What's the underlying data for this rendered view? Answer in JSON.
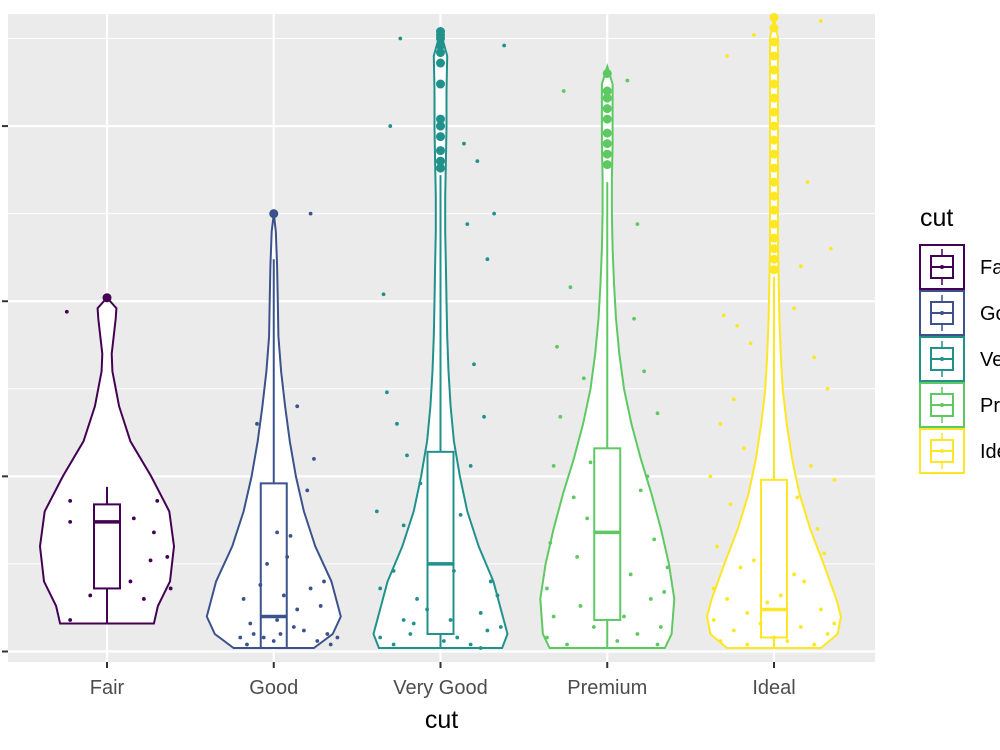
{
  "chart_data": {
    "type": "violin",
    "xlabel": "cut",
    "ylabel": "",
    "categories": [
      "Fair",
      "Good",
      "Very Good",
      "Premium",
      "Ideal"
    ],
    "colors": [
      "#440154",
      "#3b528b",
      "#21918c",
      "#5ec962",
      "#fde725"
    ],
    "grid": true,
    "panel_background": "#ebebeb",
    "ylim": [
      -0.3,
      18.2
    ],
    "y_gridlines_major": [
      0,
      5,
      10,
      15
    ],
    "y_gridlines_minor": [
      2.5,
      7.5,
      12.5,
      17.5
    ],
    "y_tick_labels_visible": false,
    "legend": {
      "title": "cut",
      "position": "right",
      "entries": [
        "Fair",
        "Good",
        "Very Good",
        "Premium",
        "Ideal"
      ]
    },
    "series": [
      {
        "category": "Fair",
        "violin_range": [
          0.8,
          10.1
        ],
        "violin_profile": [
          [
            0.8,
            0.7
          ],
          [
            1.3,
            0.76
          ],
          [
            2.0,
            0.94
          ],
          [
            3.0,
            1.0
          ],
          [
            4.0,
            0.93
          ],
          [
            5.0,
            0.66
          ],
          [
            6.0,
            0.35
          ],
          [
            7.0,
            0.18
          ],
          [
            8.0,
            0.08
          ],
          [
            8.5,
            0.07
          ],
          [
            9.0,
            0.1
          ],
          [
            9.5,
            0.13
          ],
          [
            9.8,
            0.14
          ],
          [
            10.1,
            0.0
          ]
        ],
        "box": {
          "q1": 1.8,
          "median": 3.7,
          "q3": 4.2,
          "whisker_low": 0.8,
          "whisker_high": 4.7
        },
        "outliers": [
          10.1
        ],
        "points": [
          [
            -0.6,
            9.7
          ],
          [
            -0.55,
            3.7
          ],
          [
            -0.55,
            0.9
          ],
          [
            -0.55,
            4.3
          ],
          [
            -0.25,
            1.6
          ],
          [
            0.35,
            2.0
          ],
          [
            0.4,
            3.8
          ],
          [
            0.55,
            1.5
          ],
          [
            0.65,
            2.6
          ],
          [
            0.7,
            3.4
          ],
          [
            0.75,
            4.3
          ],
          [
            0.9,
            2.7
          ],
          [
            0.95,
            1.8
          ]
        ]
      },
      {
        "category": "Good",
        "violin_range": [
          0.1,
          12.5
        ],
        "violin_profile": [
          [
            0.1,
            0.6
          ],
          [
            0.5,
            0.88
          ],
          [
            1.0,
            1.0
          ],
          [
            2.0,
            0.86
          ],
          [
            3.0,
            0.62
          ],
          [
            4.0,
            0.45
          ],
          [
            5.0,
            0.33
          ],
          [
            6.0,
            0.24
          ],
          [
            7.0,
            0.17
          ],
          [
            8.0,
            0.11
          ],
          [
            9.0,
            0.07
          ],
          [
            10.0,
            0.06
          ],
          [
            11.0,
            0.05
          ],
          [
            12.0,
            0.03
          ],
          [
            12.5,
            0.0
          ]
        ],
        "box": {
          "q1": 0.1,
          "median": 1.0,
          "q3": 4.8,
          "whisker_low": 0.1,
          "whisker_high": 11.2
        },
        "outliers": [
          12.5
        ],
        "points": [
          [
            -0.45,
            1.5
          ],
          [
            -0.35,
            0.8
          ],
          [
            -0.3,
            0.5
          ],
          [
            -0.25,
            6.5
          ],
          [
            -0.2,
            1.9
          ],
          [
            -0.15,
            0.4
          ],
          [
            -0.1,
            2.5
          ],
          [
            0.05,
            0.9
          ],
          [
            0.05,
            3.4
          ],
          [
            0.1,
            0.5
          ],
          [
            0.15,
            1.6
          ],
          [
            0.2,
            2.7
          ],
          [
            0.25,
            3.3
          ],
          [
            0.35,
            1.2
          ],
          [
            0.35,
            7.0
          ],
          [
            0.45,
            0.6
          ],
          [
            0.5,
            4.6
          ],
          [
            0.55,
            1.8
          ],
          [
            0.55,
            12.5
          ],
          [
            0.6,
            5.5
          ],
          [
            0.65,
            0.3
          ],
          [
            0.7,
            1.3
          ],
          [
            0.8,
            0.5
          ],
          [
            0.85,
            0.2
          ],
          [
            0.95,
            0.4
          ],
          [
            -0.5,
            0.4
          ],
          [
            -0.4,
            0.2
          ],
          [
            0.0,
            0.3
          ],
          [
            0.3,
            0.7
          ],
          [
            0.75,
            2.0
          ]
        ]
      },
      {
        "category": "Very Good",
        "violin_range": [
          0.1,
          17.7
        ],
        "violin_profile": [
          [
            0.1,
            0.92
          ],
          [
            0.5,
            1.0
          ],
          [
            1.0,
            0.93
          ],
          [
            2.0,
            0.79
          ],
          [
            3.0,
            0.57
          ],
          [
            4.0,
            0.4
          ],
          [
            5.0,
            0.29
          ],
          [
            6.0,
            0.2
          ],
          [
            7.0,
            0.15
          ],
          [
            8.0,
            0.12
          ],
          [
            9.0,
            0.1
          ],
          [
            10.0,
            0.09
          ],
          [
            11.0,
            0.08
          ],
          [
            12.0,
            0.07
          ],
          [
            13.0,
            0.07
          ],
          [
            14.0,
            0.08
          ],
          [
            15.0,
            0.09
          ],
          [
            16.0,
            0.09
          ],
          [
            17.0,
            0.1
          ],
          [
            17.7,
            0.0
          ]
        ],
        "box": {
          "q1": 0.5,
          "median": 2.5,
          "q3": 5.7,
          "whisker_low": 0.1,
          "whisker_high": 13.6
        },
        "outliers": [
          17.7,
          17.6,
          17.5,
          17.3,
          17.1,
          16.8,
          16.2,
          15.2,
          15.0,
          14.7,
          14.3,
          14.0,
          13.8
        ],
        "points": [
          [
            -0.95,
            4.0
          ],
          [
            -0.9,
            1.8
          ],
          [
            -0.85,
            10.2
          ],
          [
            -0.8,
            7.4
          ],
          [
            -0.75,
            15.0
          ],
          [
            -0.7,
            2.3
          ],
          [
            -0.65,
            6.5
          ],
          [
            -0.6,
            17.5
          ],
          [
            -0.55,
            3.6
          ],
          [
            -0.5,
            5.6
          ],
          [
            -0.4,
            0.8
          ],
          [
            -0.35,
            1.5
          ],
          [
            -0.3,
            4.8
          ],
          [
            0.3,
            3.9
          ],
          [
            0.35,
            14.5
          ],
          [
            0.4,
            12.2
          ],
          [
            0.45,
            5.3
          ],
          [
            0.5,
            8.2
          ],
          [
            0.55,
            14.0
          ],
          [
            0.6,
            1.1
          ],
          [
            0.65,
            6.7
          ],
          [
            0.7,
            11.2
          ],
          [
            0.75,
            2.0
          ],
          [
            0.8,
            12.5
          ],
          [
            0.9,
            0.7
          ],
          [
            0.95,
            17.3
          ],
          [
            -0.9,
            0.4
          ],
          [
            -0.7,
            0.2
          ],
          [
            -0.45,
            0.5
          ],
          [
            0.05,
            0.3
          ],
          [
            0.15,
            0.9
          ],
          [
            0.25,
            0.4
          ],
          [
            0.45,
            0.2
          ],
          [
            0.7,
            0.6
          ],
          [
            0.85,
            1.6
          ],
          [
            -0.2,
            1.2
          ],
          [
            0.2,
            2.3
          ],
          [
            -0.55,
            0.9
          ],
          [
            0.6,
            0.1
          ]
        ]
      },
      {
        "category": "Premium",
        "violin_range": [
          0.1,
          16.7
        ],
        "violin_profile": [
          [
            0.1,
            0.86
          ],
          [
            0.5,
            0.96
          ],
          [
            1.5,
            1.0
          ],
          [
            2.5,
            0.92
          ],
          [
            3.5,
            0.8
          ],
          [
            4.5,
            0.66
          ],
          [
            5.5,
            0.5
          ],
          [
            6.5,
            0.36
          ],
          [
            7.5,
            0.25
          ],
          [
            8.5,
            0.18
          ],
          [
            9.5,
            0.13
          ],
          [
            10.5,
            0.1
          ],
          [
            11.5,
            0.08
          ],
          [
            12.5,
            0.07
          ],
          [
            13.5,
            0.07
          ],
          [
            14.5,
            0.08
          ],
          [
            15.5,
            0.08
          ],
          [
            16.2,
            0.08
          ],
          [
            16.7,
            0.0
          ]
        ],
        "box": {
          "q1": 0.9,
          "median": 3.4,
          "q3": 5.8,
          "whisker_low": 0.1,
          "whisker_high": 13.4
        },
        "outliers": [
          16.5,
          16.0,
          15.8,
          15.5,
          15.2,
          14.8,
          14.5,
          14.2,
          13.9
        ],
        "points": [
          [
            -0.9,
            1.8
          ],
          [
            -0.85,
            3.1
          ],
          [
            -0.8,
            5.3
          ],
          [
            -0.75,
            8.7
          ],
          [
            -0.7,
            6.7
          ],
          [
            -0.65,
            16.0
          ],
          [
            -0.55,
            10.4
          ],
          [
            -0.5,
            4.4
          ],
          [
            -0.45,
            2.7
          ],
          [
            -0.4,
            1.3
          ],
          [
            -0.35,
            7.8
          ],
          [
            -0.3,
            3.8
          ],
          [
            0.3,
            16.3
          ],
          [
            0.35,
            2.2
          ],
          [
            0.4,
            9.5
          ],
          [
            0.45,
            12.2
          ],
          [
            0.5,
            4.6
          ],
          [
            0.55,
            8.0
          ],
          [
            0.6,
            5.0
          ],
          [
            0.65,
            1.5
          ],
          [
            0.7,
            3.2
          ],
          [
            0.75,
            6.8
          ],
          [
            0.8,
            0.7
          ],
          [
            0.9,
            2.4
          ],
          [
            -0.9,
            0.4
          ],
          [
            -0.6,
            0.2
          ],
          [
            -0.2,
            0.7
          ],
          [
            0.15,
            0.3
          ],
          [
            0.45,
            0.5
          ],
          [
            0.75,
            0.2
          ],
          [
            -0.8,
            1.0
          ],
          [
            0.25,
            1.0
          ],
          [
            0.85,
            1.7
          ],
          [
            -0.25,
            5.4
          ]
        ]
      },
      {
        "category": "Ideal",
        "violin_range": [
          0.1,
          18.1
        ],
        "violin_profile": [
          [
            0.1,
            0.7
          ],
          [
            0.5,
            0.95
          ],
          [
            1.0,
            1.0
          ],
          [
            1.5,
            0.93
          ],
          [
            2.5,
            0.74
          ],
          [
            3.5,
            0.54
          ],
          [
            4.5,
            0.38
          ],
          [
            5.5,
            0.27
          ],
          [
            6.5,
            0.19
          ],
          [
            7.5,
            0.13
          ],
          [
            8.5,
            0.1
          ],
          [
            9.5,
            0.08
          ],
          [
            10.5,
            0.07
          ],
          [
            11.5,
            0.06
          ],
          [
            12.5,
            0.06
          ],
          [
            13.5,
            0.06
          ],
          [
            14.5,
            0.06
          ],
          [
            15.5,
            0.06
          ],
          [
            16.5,
            0.06
          ],
          [
            17.5,
            0.06
          ],
          [
            18.1,
            0.0
          ]
        ],
        "box": {
          "q1": 0.4,
          "median": 1.2,
          "q3": 4.9,
          "whisker_low": 0.1,
          "whisker_high": 10.7
        },
        "outliers": [
          18.1,
          17.8,
          17.4,
          17.0,
          16.6,
          16.2,
          15.8,
          15.4,
          15.0,
          14.6,
          14.2,
          13.8,
          13.4,
          13.0,
          12.6,
          12.2,
          11.8,
          11.5,
          11.2,
          10.9
        ],
        "points": [
          [
            -0.95,
            5.0
          ],
          [
            -0.9,
            1.8
          ],
          [
            -0.85,
            3.0
          ],
          [
            -0.8,
            6.5
          ],
          [
            -0.75,
            9.6
          ],
          [
            -0.7,
            17.0
          ],
          [
            -0.65,
            4.2
          ],
          [
            -0.6,
            7.2
          ],
          [
            -0.55,
            9.3
          ],
          [
            -0.5,
            2.4
          ],
          [
            -0.45,
            5.8
          ],
          [
            -0.4,
            1.1
          ],
          [
            -0.35,
            8.8
          ],
          [
            -0.3,
            17.6
          ],
          [
            0.3,
            9.8
          ],
          [
            0.35,
            4.4
          ],
          [
            0.4,
            11.0
          ],
          [
            0.45,
            2.0
          ],
          [
            0.5,
            13.4
          ],
          [
            0.55,
            5.3
          ],
          [
            0.6,
            8.4
          ],
          [
            0.65,
            3.5
          ],
          [
            0.7,
            18.0
          ],
          [
            0.75,
            2.8
          ],
          [
            0.8,
            7.5
          ],
          [
            0.85,
            11.5
          ],
          [
            0.9,
            4.9
          ],
          [
            -0.8,
            0.3
          ],
          [
            -0.6,
            0.6
          ],
          [
            -0.4,
            0.2
          ],
          [
            -0.2,
            0.8
          ],
          [
            0.0,
            0.4
          ],
          [
            0.2,
            0.3
          ],
          [
            0.4,
            0.7
          ],
          [
            0.6,
            0.2
          ],
          [
            0.8,
            0.5
          ],
          [
            -0.7,
            1.5
          ],
          [
            -0.1,
            1.4
          ],
          [
            0.1,
            1.6
          ],
          [
            0.7,
            1.2
          ],
          [
            -0.3,
            2.6
          ],
          [
            0.3,
            2.2
          ],
          [
            -0.9,
            0.9
          ],
          [
            0.9,
            0.8
          ]
        ]
      }
    ]
  }
}
